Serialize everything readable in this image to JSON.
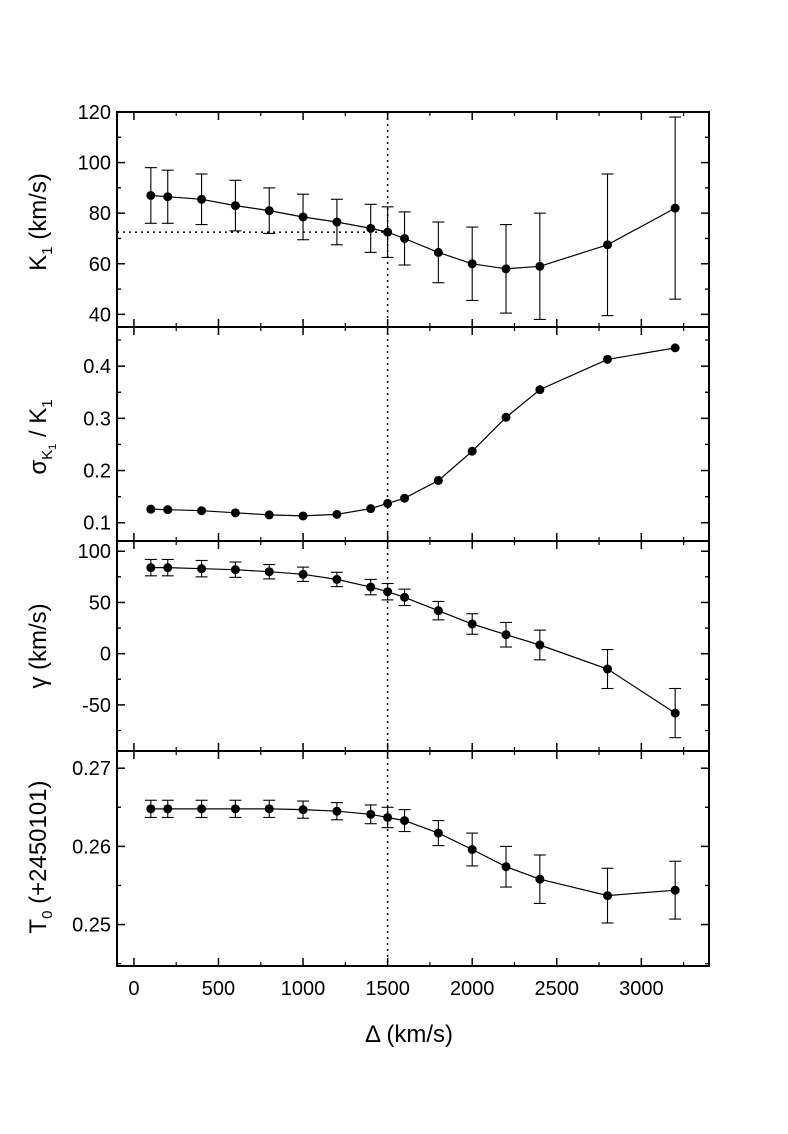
{
  "chart_data": [
    {
      "type": "line",
      "panel": "K1",
      "ylabel": "K",
      "ylabel_sub": "1",
      "ylabel_tail": " (km/s)",
      "ylim": [
        35,
        120
      ],
      "yticks": [
        40,
        60,
        80,
        100,
        120
      ],
      "ytick_labels": [
        "40",
        "60",
        "80",
        "100",
        "120"
      ],
      "xlim": [
        -100,
        3400
      ],
      "error_bars": true,
      "reference_vline_x": 1500,
      "reference_hline": {
        "y": 72.5,
        "x_from": -100,
        "x_to": 1500
      },
      "series": [
        {
          "name": "K1",
          "x": [
            100,
            200,
            400,
            600,
            800,
            1000,
            1200,
            1400,
            1500,
            1600,
            1800,
            2000,
            2200,
            2400,
            2800,
            3200
          ],
          "y": [
            87,
            86.5,
            85.5,
            83,
            81,
            78.5,
            76.5,
            74,
            72.5,
            70,
            64.5,
            60,
            58,
            59,
            67.5,
            82
          ],
          "err": [
            11,
            10.5,
            10,
            10,
            9,
            9,
            9,
            9.5,
            10,
            10.5,
            12,
            14.5,
            17.5,
            21,
            28,
            36
          ]
        }
      ]
    },
    {
      "type": "line",
      "panel": "sigmaK1_over_K1",
      "ylabel": "σ",
      "ylabel_sub": "K",
      "ylabel_subsub": "1",
      "ylabel_mid": " / K",
      "ylabel_sub2": "1",
      "ylim": [
        0.065,
        0.475
      ],
      "yticks": [
        0.1,
        0.2,
        0.3,
        0.4
      ],
      "ytick_labels": [
        "0.1",
        "0.2",
        "0.3",
        "0.4"
      ],
      "xlim": [
        -100,
        3400
      ],
      "error_bars": false,
      "reference_vline_x": 1500,
      "series": [
        {
          "name": "sigma_K1/K1",
          "x": [
            100,
            200,
            400,
            600,
            800,
            1000,
            1200,
            1400,
            1500,
            1600,
            1800,
            2000,
            2200,
            2400,
            2800,
            3200
          ],
          "y": [
            0.126,
            0.125,
            0.123,
            0.119,
            0.115,
            0.113,
            0.116,
            0.127,
            0.137,
            0.147,
            0.181,
            0.237,
            0.302,
            0.355,
            0.413,
            0.435
          ]
        }
      ]
    },
    {
      "type": "line",
      "panel": "gamma",
      "ylabel": "γ (km/s)",
      "ylim": [
        -95,
        110
      ],
      "yticks": [
        -50,
        0,
        50,
        100
      ],
      "ytick_labels": [
        "-50",
        "0",
        "50",
        "100"
      ],
      "xlim": [
        -100,
        3400
      ],
      "error_bars": true,
      "reference_vline_x": 1500,
      "series": [
        {
          "name": "gamma",
          "x": [
            100,
            200,
            400,
            600,
            800,
            1000,
            1200,
            1400,
            1500,
            1600,
            1800,
            2000,
            2200,
            2400,
            2800,
            3200
          ],
          "y": [
            84,
            84,
            83,
            82,
            80,
            77.5,
            72.5,
            65,
            60.5,
            55,
            42,
            29,
            18.5,
            8.5,
            -15,
            -58
          ],
          "err": [
            8,
            8,
            8,
            7.5,
            7,
            7,
            7,
            7.5,
            8,
            8,
            9,
            10,
            12,
            14.5,
            19,
            24
          ]
        }
      ]
    },
    {
      "type": "line",
      "panel": "T0",
      "ylabel": "T",
      "ylabel_sub": "0",
      "ylabel_tail": " (+2450101)",
      "ylim": [
        0.2447,
        0.2722
      ],
      "yticks": [
        0.25,
        0.26,
        0.27
      ],
      "ytick_labels": [
        "0.25",
        "0.26",
        "0.27"
      ],
      "xlim": [
        -100,
        3400
      ],
      "xticks": [
        0,
        500,
        1000,
        1500,
        2000,
        2500,
        3000
      ],
      "xtick_labels": [
        "0",
        "500",
        "1000",
        "1500",
        "2000",
        "2500",
        "3000"
      ],
      "xlabel": "Δ (km/s)",
      "error_bars": true,
      "reference_vline_x": 1500,
      "series": [
        {
          "name": "T0",
          "x": [
            100,
            200,
            400,
            600,
            800,
            1000,
            1200,
            1400,
            1500,
            1600,
            1800,
            2000,
            2200,
            2400,
            2800,
            3200
          ],
          "y": [
            0.2648,
            0.2648,
            0.2648,
            0.2648,
            0.2648,
            0.2647,
            0.2645,
            0.2641,
            0.2637,
            0.2633,
            0.2617,
            0.2596,
            0.2574,
            0.2558,
            0.2537,
            0.2544
          ],
          "err": [
            0.0011,
            0.0011,
            0.0011,
            0.0011,
            0.0011,
            0.0011,
            0.0011,
            0.0012,
            0.0013,
            0.0014,
            0.0016,
            0.0021,
            0.0026,
            0.0031,
            0.0035,
            0.0037
          ]
        }
      ]
    }
  ]
}
